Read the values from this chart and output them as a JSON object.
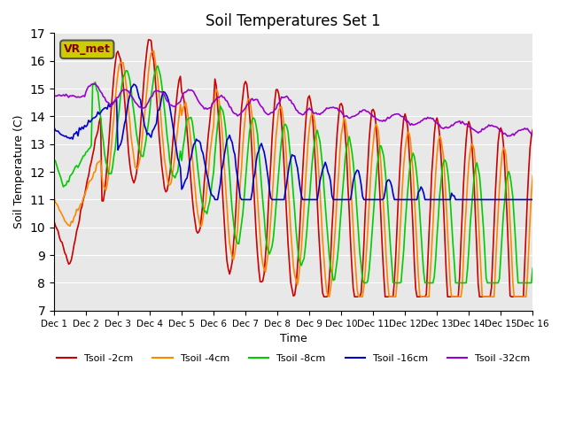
{
  "title": "Soil Temperatures Set 1",
  "xlabel": "Time",
  "ylabel": "Soil Temperature (C)",
  "ylim": [
    7.0,
    17.0
  ],
  "yticks": [
    7.0,
    8.0,
    9.0,
    10.0,
    11.0,
    12.0,
    13.0,
    14.0,
    15.0,
    16.0,
    17.0
  ],
  "xtick_labels": [
    "Dec 1",
    "Dec 2",
    "Dec 3",
    "Dec 4",
    "Dec 5",
    "Dec 6",
    "Dec 7",
    "Dec 8",
    "Dec 9",
    "Dec 10",
    "Dec 11",
    "Dec 12",
    "Dec 13",
    "Dec 14",
    "Dec 15",
    "Dec 16"
  ],
  "colors": {
    "tsoil_2cm": "#cc0000",
    "tsoil_4cm": "#ff8800",
    "tsoil_8cm": "#00cc00",
    "tsoil_16cm": "#0000cc",
    "tsoil_32cm": "#9900cc"
  },
  "background_color": "#e8e8e8",
  "annotation_text": "VR_met",
  "annotation_box_color": "#cccc00",
  "annotation_text_color": "#800000"
}
